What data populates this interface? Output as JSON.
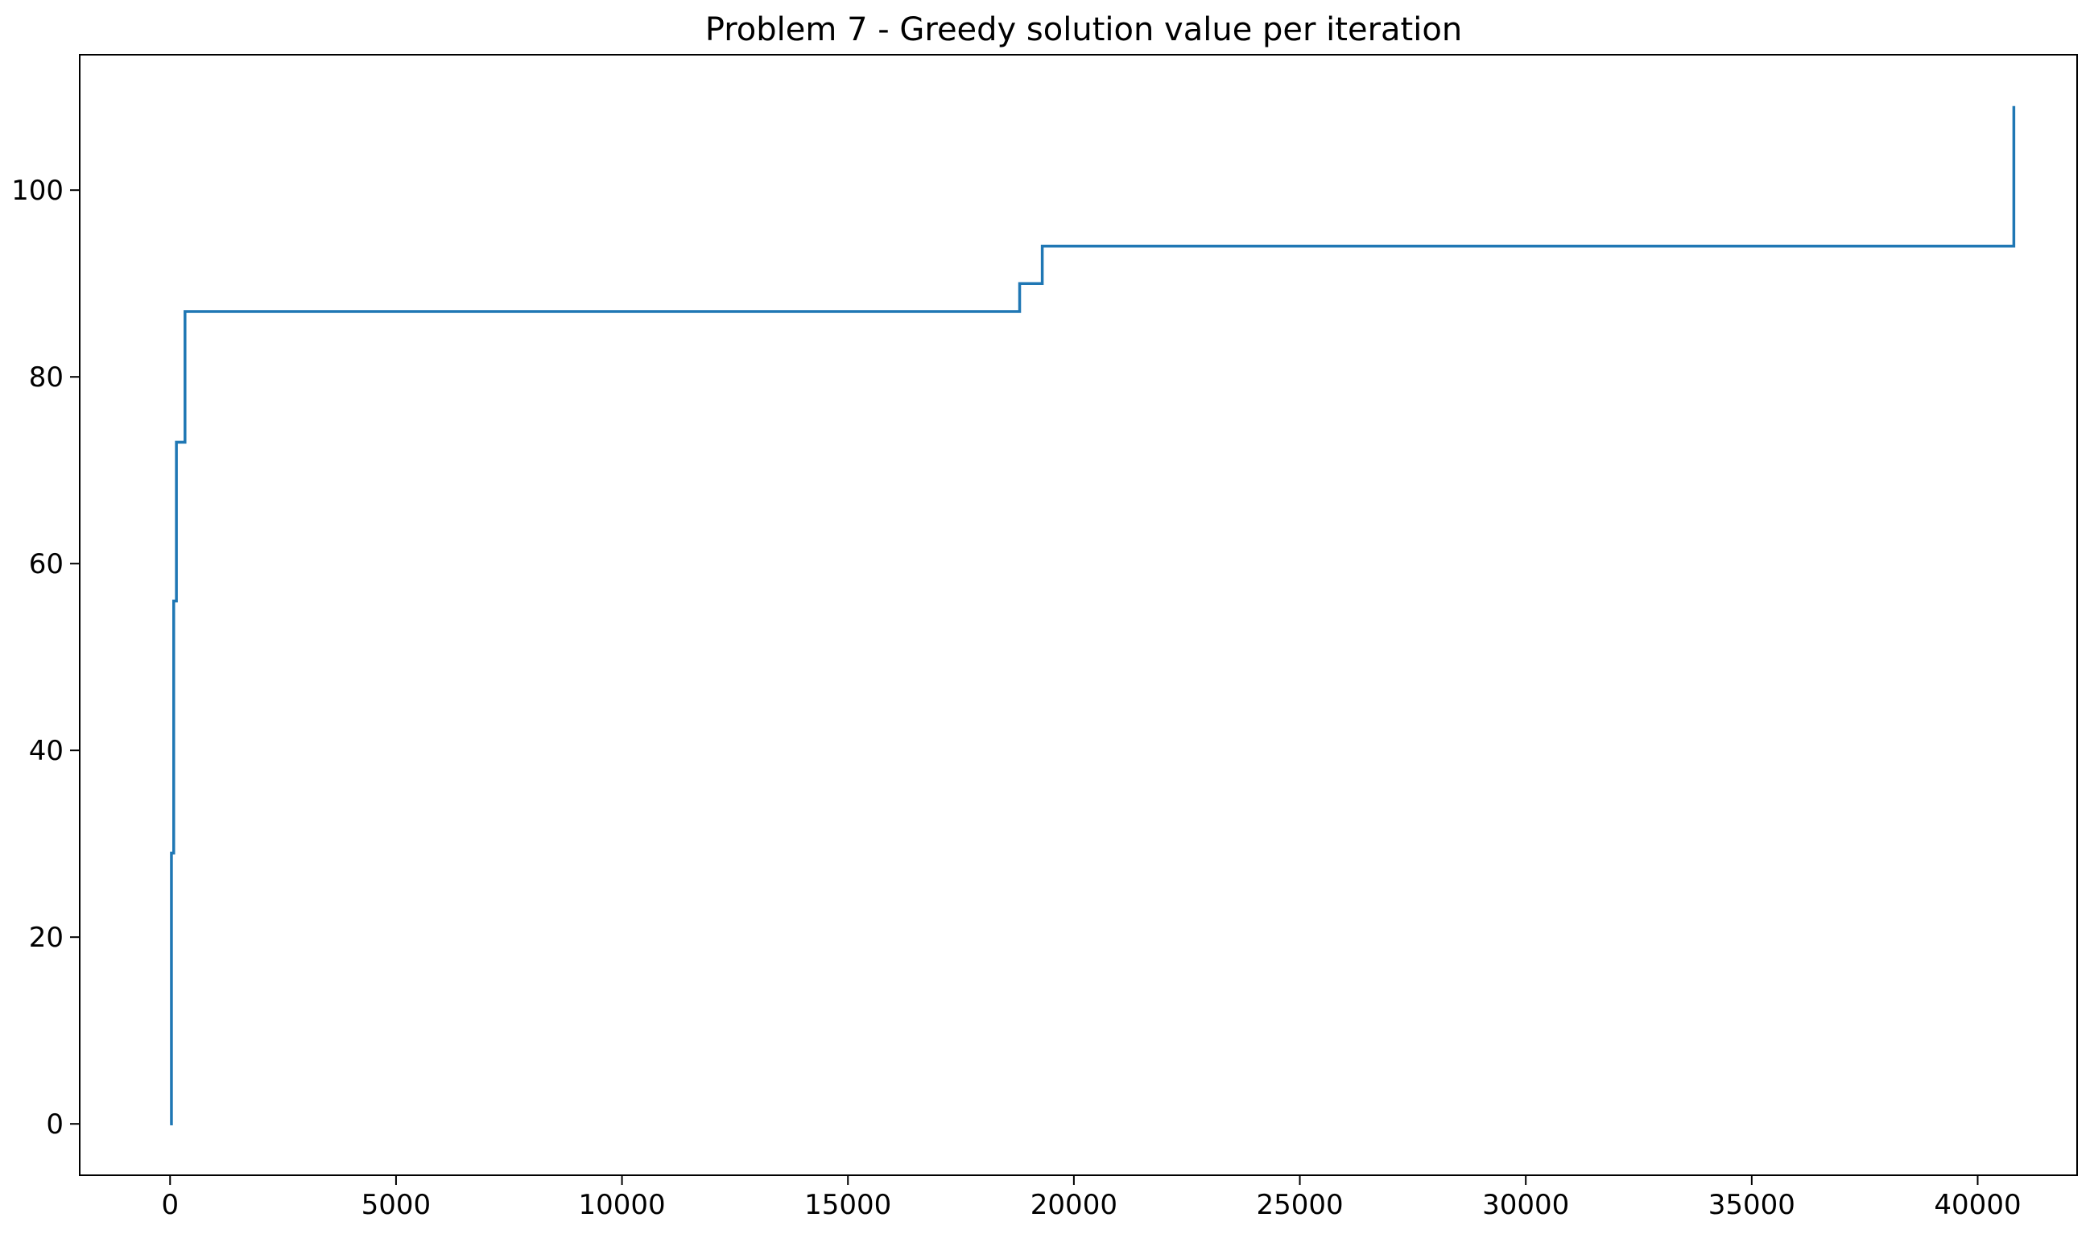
{
  "chart_data": {
    "type": "line",
    "title": "Problem 7 - Greedy solution value per iteration",
    "xlabel": "",
    "ylabel": "",
    "xlim": [
      -2000,
      42200
    ],
    "ylim": [
      -5.5,
      114.5
    ],
    "xticks": [
      0,
      5000,
      10000,
      15000,
      20000,
      25000,
      30000,
      35000,
      40000
    ],
    "xtick_labels": [
      "0",
      "5000",
      "10000",
      "15000",
      "20000",
      "25000",
      "30000",
      "35000",
      "40000"
    ],
    "yticks": [
      0,
      20,
      40,
      60,
      80,
      100
    ],
    "ytick_labels": [
      "0",
      "20",
      "40",
      "60",
      "80",
      "100"
    ],
    "grid": false,
    "legend": "none",
    "line_color": "#1f77b4",
    "step": "post",
    "series": [
      {
        "x": [
          0,
          30,
          80,
          140,
          330,
          18800,
          19300,
          40800
        ],
        "y": [
          0,
          29,
          56,
          73,
          87,
          90,
          94,
          109
        ]
      }
    ]
  }
}
